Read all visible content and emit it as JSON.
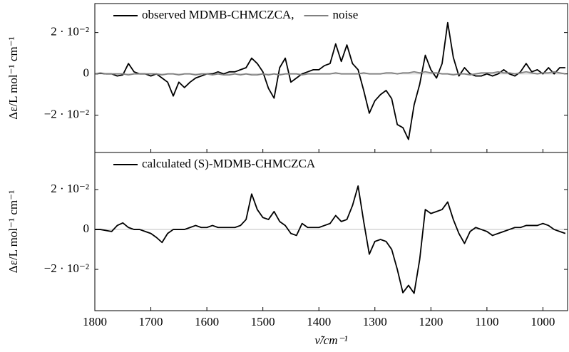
{
  "chart_data": [
    {
      "type": "line",
      "ylabel": "Δε/L mol⁻¹ cm⁻¹",
      "xlim": [
        1800,
        956
      ],
      "ylim": [
        -0.038,
        0.034
      ],
      "yticks": [
        {
          "value": -0.02,
          "label": "−2 · 10⁻²"
        },
        0,
        {
          "value": 0.02,
          "label": "2 · 10⁻²"
        }
      ],
      "zero_line": true,
      "legend": "top-left",
      "x": [
        1800,
        1790,
        1780,
        1770,
        1760,
        1750,
        1740,
        1730,
        1720,
        1710,
        1700,
        1690,
        1680,
        1670,
        1660,
        1650,
        1640,
        1630,
        1620,
        1610,
        1600,
        1590,
        1580,
        1570,
        1560,
        1550,
        1540,
        1530,
        1520,
        1510,
        1500,
        1490,
        1480,
        1470,
        1460,
        1450,
        1440,
        1430,
        1420,
        1410,
        1400,
        1390,
        1380,
        1370,
        1360,
        1350,
        1340,
        1330,
        1320,
        1310,
        1300,
        1290,
        1280,
        1270,
        1260,
        1250,
        1240,
        1230,
        1220,
        1210,
        1200,
        1190,
        1180,
        1170,
        1160,
        1150,
        1140,
        1130,
        1120,
        1110,
        1100,
        1090,
        1080,
        1070,
        1060,
        1050,
        1040,
        1030,
        1020,
        1010,
        1000,
        990,
        980,
        970,
        960
      ],
      "series": [
        {
          "name": "observed MDMB-CHMCZCA,",
          "color": "#000000",
          "values": [
            0,
            0.0003,
            0,
            0,
            -0.001,
            -0.0005,
            0.005,
            0.001,
            0,
            0,
            -0.001,
            0,
            -0.002,
            -0.004,
            -0.0107,
            -0.004,
            -0.0066,
            -0.004,
            -0.002,
            -0.001,
            0,
            0,
            0.001,
            0,
            0.001,
            0.001,
            0.002,
            0.003,
            0.0076,
            0.005,
            0.001,
            -0.007,
            -0.0117,
            0.003,
            0.0076,
            -0.004,
            -0.002,
            0,
            0.001,
            0.002,
            0.002,
            0.004,
            0.005,
            0.0145,
            0.006,
            0.014,
            0.005,
            0.002,
            -0.008,
            -0.019,
            -0.013,
            -0.01,
            -0.008,
            -0.012,
            -0.0245,
            -0.026,
            -0.0317,
            -0.015,
            -0.005,
            0.009,
            0.002,
            -0.002,
            0.005,
            0.0248,
            0.008,
            -0.001,
            0.003,
            0,
            -0.001,
            -0.001,
            0,
            -0.001,
            0,
            0.002,
            0,
            -0.001,
            0.001,
            0.005,
            0.001,
            0.002,
            0,
            0.003,
            0,
            0.003,
            0.003
          ]
        },
        {
          "name": "noise",
          "color": "#808080",
          "values": [
            0,
            0.0005,
            0,
            0,
            0,
            0,
            -0.0005,
            0,
            0,
            0,
            0,
            0,
            -0.0005,
            0,
            0,
            -0.0005,
            0,
            0,
            -0.0005,
            0,
            0,
            -0.0005,
            0,
            -0.0005,
            -0.0005,
            0,
            -0.0005,
            0,
            -0.0005,
            -0.0005,
            0,
            -0.0005,
            0,
            -0.0005,
            0,
            0,
            0,
            -0.0005,
            0,
            0,
            0,
            0,
            0,
            0.0005,
            0,
            0,
            0,
            0,
            0.0005,
            0,
            0,
            0,
            0.0005,
            0.0005,
            0,
            0.0005,
            0.0005,
            0.001,
            0.0005,
            0.001,
            0.0005,
            0.0005,
            0,
            0,
            -0.0005,
            0,
            0,
            -0.0005,
            0,
            0.0005,
            0.0005,
            0.0005,
            0.001,
            0.0005,
            0.0005,
            0,
            0.0005,
            0.001,
            0.0005,
            0,
            0.0005,
            0.0005,
            0.001,
            0.0005,
            0
          ]
        }
      ]
    },
    {
      "type": "line",
      "ylabel": "Δε/L mol⁻¹ cm⁻¹",
      "xlabel": "ν̃/cm⁻¹",
      "xlim": [
        1800,
        956
      ],
      "ylim": [
        -0.0407,
        0.0386
      ],
      "xticks": [
        1800,
        1700,
        1600,
        1500,
        1400,
        1300,
        1200,
        1100,
        1000
      ],
      "yticks": [
        {
          "value": -0.02,
          "label": "−2 · 10⁻²"
        },
        0,
        {
          "value": 0.02,
          "label": "2 · 10⁻²"
        }
      ],
      "zero_line": true,
      "legend": "top-left",
      "x": [
        1800,
        1790,
        1780,
        1770,
        1760,
        1750,
        1740,
        1730,
        1720,
        1710,
        1700,
        1690,
        1680,
        1670,
        1660,
        1650,
        1640,
        1630,
        1620,
        1610,
        1600,
        1590,
        1580,
        1570,
        1560,
        1550,
        1540,
        1530,
        1520,
        1510,
        1500,
        1490,
        1480,
        1470,
        1460,
        1450,
        1440,
        1430,
        1420,
        1410,
        1400,
        1390,
        1380,
        1370,
        1360,
        1350,
        1340,
        1330,
        1320,
        1310,
        1300,
        1290,
        1280,
        1270,
        1260,
        1250,
        1240,
        1230,
        1220,
        1210,
        1200,
        1190,
        1180,
        1170,
        1160,
        1150,
        1140,
        1130,
        1120,
        1110,
        1100,
        1090,
        1080,
        1070,
        1060,
        1050,
        1040,
        1030,
        1020,
        1010,
        1000,
        990,
        980,
        970,
        960
      ],
      "series": [
        {
          "name": "calculated (S)-MDMB-CHMCZCA",
          "color": "#000000",
          "values": [
            0,
            0,
            -0.0005,
            -0.001,
            0.002,
            0.0033,
            0.001,
            0,
            0,
            -0.001,
            -0.002,
            -0.004,
            -0.0065,
            -0.002,
            0,
            0,
            0,
            0.001,
            0.002,
            0.001,
            0.001,
            0.002,
            0.001,
            0.001,
            0.001,
            0.001,
            0.002,
            0.005,
            0.0178,
            0.01,
            0.006,
            0.005,
            0.009,
            0.004,
            0.002,
            -0.002,
            -0.003,
            0.003,
            0.001,
            0.001,
            0.001,
            0.002,
            0.003,
            0.007,
            0.004,
            0.005,
            0.012,
            0.0218,
            0.004,
            -0.0124,
            -0.006,
            -0.005,
            -0.006,
            -0.01,
            -0.02,
            -0.0317,
            -0.028,
            -0.032,
            -0.015,
            0.01,
            0.008,
            0.009,
            0.01,
            0.0138,
            0.005,
            -0.002,
            -0.007,
            -0.001,
            0.001,
            0,
            -0.001,
            -0.003,
            -0.002,
            -0.001,
            0,
            0.001,
            0.001,
            0.002,
            0.002,
            0.002,
            0.003,
            0.002,
            0,
            -0.001,
            -0.002
          ]
        }
      ]
    }
  ]
}
